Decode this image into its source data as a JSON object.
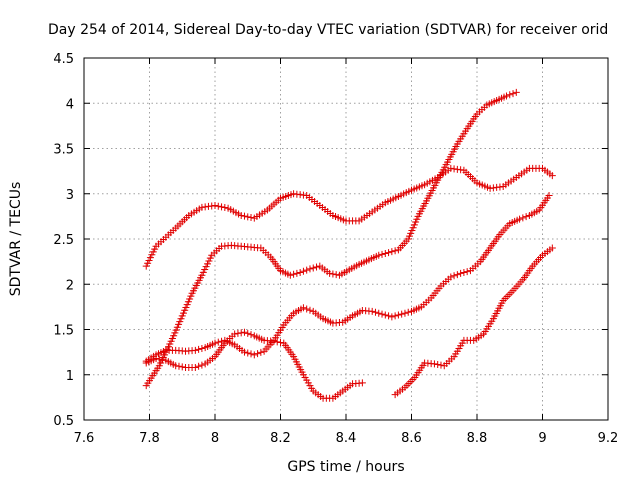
{
  "chart_data": {
    "type": "scatter",
    "title": "Day 254 of 2014, Sidereal Day-to-day VTEC variation (SDTVAR) for receiver orid",
    "xlabel": "GPS time / hours",
    "ylabel": "SDTVAR / TECUs",
    "xlim": [
      7.6,
      9.2
    ],
    "ylim": [
      0.5,
      4.5
    ],
    "xticks": [
      "7.6",
      "7.8",
      "8",
      "8.2",
      "8.4",
      "8.6",
      "8.8",
      "9",
      "9.2"
    ],
    "yticks": [
      "0.5",
      "1",
      "1.5",
      "2",
      "2.5",
      "3",
      "3.5",
      "4",
      "4.5"
    ],
    "grid": true,
    "marker": "+",
    "color": "#e00000",
    "series": [
      {
        "x": [
          7.79,
          7.82,
          7.85,
          7.88,
          7.92,
          7.96,
          8.0,
          8.04,
          8.08,
          8.12,
          8.16,
          8.2,
          8.24,
          8.28,
          8.32,
          8.36,
          8.4,
          8.44,
          8.48,
          8.52,
          8.56,
          8.6,
          8.64,
          8.68,
          8.72,
          8.76,
          8.8,
          8.84,
          8.88,
          8.92,
          8.96,
          9.0,
          9.03
        ],
        "y": [
          2.2,
          2.42,
          2.52,
          2.62,
          2.76,
          2.85,
          2.87,
          2.84,
          2.76,
          2.73,
          2.82,
          2.95,
          3.0,
          2.98,
          2.87,
          2.76,
          2.7,
          2.7,
          2.8,
          2.9,
          2.97,
          3.04,
          3.1,
          3.18,
          3.28,
          3.26,
          3.12,
          3.06,
          3.08,
          3.18,
          3.28,
          3.28,
          3.2
        ]
      },
      {
        "x": [
          7.79,
          7.83,
          7.87,
          7.9,
          7.93,
          7.96,
          7.99,
          8.02,
          8.05,
          8.08,
          8.11,
          8.14,
          8.17,
          8.2,
          8.23,
          8.26,
          8.29,
          8.32,
          8.35,
          8.38,
          8.41,
          8.44,
          8.47,
          8.5,
          8.53,
          8.56,
          8.59,
          8.62,
          8.65,
          8.68,
          8.71,
          8.74,
          8.77,
          8.8,
          8.83,
          8.86,
          8.89,
          8.92
        ],
        "y": [
          0.88,
          1.1,
          1.4,
          1.65,
          1.9,
          2.1,
          2.32,
          2.42,
          2.43,
          2.42,
          2.41,
          2.4,
          2.3,
          2.15,
          2.1,
          2.13,
          2.17,
          2.2,
          2.12,
          2.1,
          2.16,
          2.22,
          2.27,
          2.32,
          2.35,
          2.38,
          2.5,
          2.75,
          2.95,
          3.15,
          3.35,
          3.55,
          3.72,
          3.88,
          3.98,
          4.03,
          4.08,
          4.12
        ]
      },
      {
        "x": [
          7.79,
          7.82,
          7.85,
          7.88,
          7.91,
          7.94,
          7.97,
          8.0,
          8.03,
          8.06,
          8.09,
          8.12,
          8.15,
          8.18,
          8.21,
          8.24,
          8.27,
          8.3,
          8.33,
          8.36,
          8.39,
          8.42,
          8.45,
          8.48,
          8.51,
          8.54,
          8.57,
          8.6,
          8.63,
          8.66,
          8.69,
          8.72,
          8.75,
          8.78,
          8.81,
          8.84,
          8.87,
          8.9,
          8.93,
          8.96,
          8.99,
          9.02
        ],
        "y": [
          1.15,
          1.22,
          1.27,
          1.27,
          1.26,
          1.27,
          1.3,
          1.35,
          1.38,
          1.33,
          1.25,
          1.22,
          1.26,
          1.38,
          1.55,
          1.68,
          1.74,
          1.7,
          1.62,
          1.57,
          1.58,
          1.65,
          1.71,
          1.7,
          1.67,
          1.64,
          1.67,
          1.7,
          1.75,
          1.85,
          1.98,
          2.08,
          2.12,
          2.15,
          2.25,
          2.4,
          2.55,
          2.67,
          2.72,
          2.76,
          2.82,
          2.98
        ]
      },
      {
        "x": [
          7.79,
          7.82,
          7.85,
          7.88,
          7.91,
          7.94,
          7.97,
          8.0,
          8.03,
          8.06,
          8.09,
          8.12,
          8.15,
          8.18,
          8.21,
          8.24,
          8.27,
          8.3,
          8.33,
          8.36,
          8.39,
          8.42,
          8.45
        ],
        "y": [
          1.13,
          1.18,
          1.16,
          1.1,
          1.08,
          1.08,
          1.12,
          1.2,
          1.35,
          1.45,
          1.47,
          1.43,
          1.38,
          1.37,
          1.35,
          1.2,
          1.0,
          0.82,
          0.74,
          0.74,
          0.82,
          0.9,
          0.91
        ]
      },
      {
        "x": [
          8.55,
          8.58,
          8.61,
          8.64,
          8.67,
          8.7,
          8.73,
          8.76,
          8.79,
          8.82,
          8.85,
          8.88,
          8.91,
          8.94,
          8.97,
          9.0,
          9.03
        ],
        "y": [
          0.78,
          0.86,
          0.97,
          1.13,
          1.12,
          1.1,
          1.2,
          1.38,
          1.38,
          1.45,
          1.62,
          1.82,
          1.93,
          2.05,
          2.2,
          2.32,
          2.4
        ]
      }
    ]
  }
}
